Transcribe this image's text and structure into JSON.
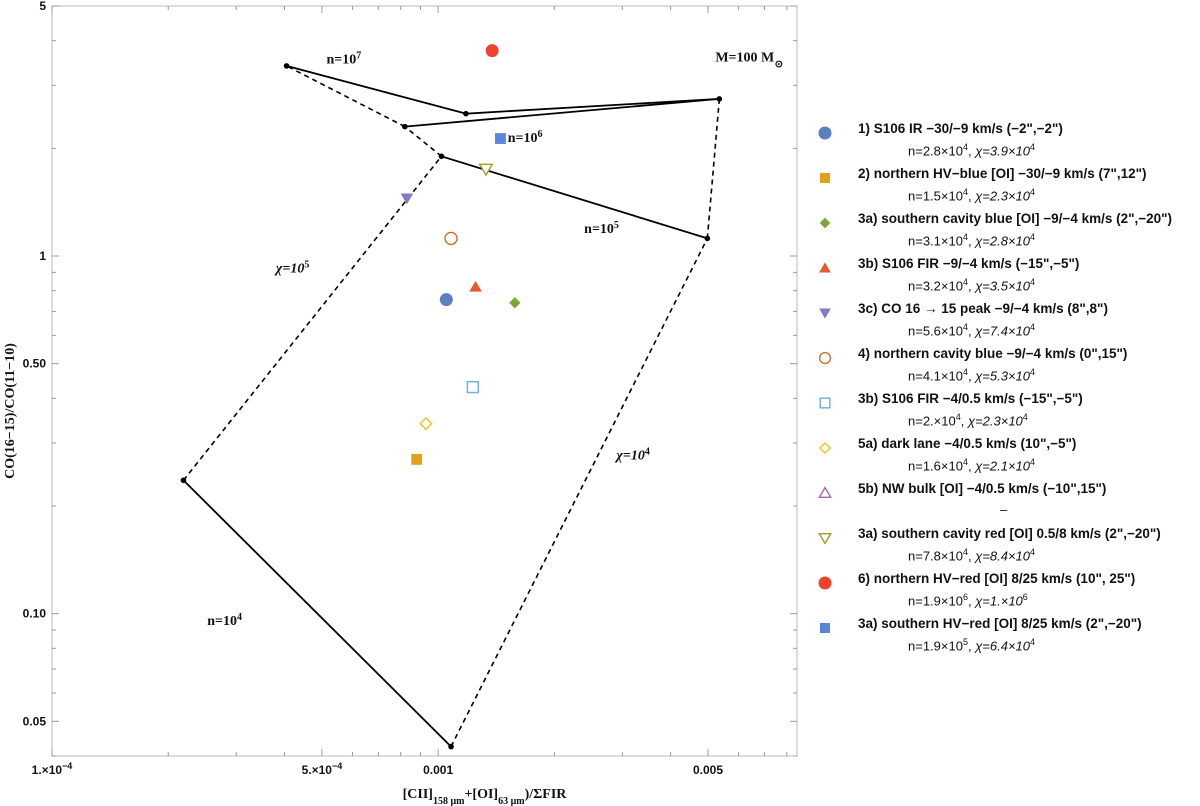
{
  "chart_data": {
    "type": "scatter",
    "xscale": "log",
    "yscale": "log",
    "xlim": [
      0.0001,
      0.0085
    ],
    "ylim": [
      0.04,
      5
    ],
    "xlabel": "[CII]158 μm+[OI]63 μm)/ΣFIR",
    "xlabel_parts": {
      "open": "[CII]",
      "sub1": "158 μm",
      "plus": "+[OI]",
      "sub2": "63 μm",
      "close": ")/ΣFIR"
    },
    "ylabel": "CO(16−15)/CO(11−10)",
    "x_ticks": [
      {
        "value": 0.0001,
        "label": "1.×10",
        "exp": "−4"
      },
      {
        "value": 0.0005,
        "label": "5.×10",
        "exp": "−4"
      },
      {
        "value": 0.001,
        "label": "0.001",
        "exp": ""
      },
      {
        "value": 0.005,
        "label": "0.005",
        "exp": ""
      }
    ],
    "y_ticks": [
      {
        "value": 0.05,
        "label": "0.05"
      },
      {
        "value": 0.1,
        "label": "0.10"
      },
      {
        "value": 0.5,
        "label": "0.50"
      },
      {
        "value": 1,
        "label": "1"
      },
      {
        "value": 5,
        "label": "5"
      }
    ],
    "grid_vertices": {
      "n1e4_chi1e5": [
        0.000219,
        0.236
      ],
      "n1e4_chi1e4": [
        0.00108,
        0.0425
      ],
      "n1e5_chi1e5": [
        0.00102,
        1.9
      ],
      "n1e5_chi1e4": [
        0.00498,
        1.12
      ],
      "n1e6_chi1e5": [
        0.00082,
        2.3
      ],
      "n1e6_chi1e4": [
        0.00535,
        2.75
      ],
      "n1e7_chi1e5": [
        0.000405,
        3.4
      ],
      "n1e7_mid": [
        0.00118,
        2.5
      ]
    },
    "solid_segments": [
      [
        "n1e4_chi1e5",
        "n1e4_chi1e4"
      ],
      [
        "n1e5_chi1e5",
        "n1e5_chi1e4"
      ],
      [
        "n1e6_chi1e5",
        "n1e6_chi1e4"
      ],
      [
        "n1e7_chi1e5",
        "n1e7_mid"
      ],
      [
        "n1e7_mid",
        "n1e6_chi1e4"
      ]
    ],
    "dashed_segments": [
      [
        "n1e4_chi1e5",
        "n1e5_chi1e5"
      ],
      [
        "n1e5_chi1e5",
        "n1e6_chi1e5"
      ],
      [
        "n1e6_chi1e5",
        "n1e7_chi1e5"
      ],
      [
        "n1e4_chi1e4",
        "n1e5_chi1e4"
      ],
      [
        "n1e5_chi1e4",
        "n1e6_chi1e4"
      ]
    ],
    "annotations": [
      {
        "text": "M=100 M",
        "sub": "⊙",
        "x": 0.0064,
        "y": 3.5,
        "italic": false
      },
      {
        "text": "n=10",
        "sup": "7",
        "x": 0.00057,
        "y": 3.45,
        "italic": false
      },
      {
        "text": "n=10",
        "sup": "6",
        "x": 0.00168,
        "y": 2.08,
        "italic": false
      },
      {
        "text": "n=10",
        "sup": "5",
        "x": 0.00265,
        "y": 1.16,
        "italic": false
      },
      {
        "text": "n=10",
        "sup": "4",
        "x": 0.00028,
        "y": 0.093,
        "italic": false
      },
      {
        "text": "χ=10",
        "sup": "5",
        "x": 0.00042,
        "y": 0.9,
        "italic": true
      },
      {
        "text": "χ=10",
        "sup": "4",
        "x": 0.0032,
        "y": 0.27,
        "italic": true
      }
    ],
    "series": [
      {
        "name": "1)  S106 IR −30/−9 km/s (−2\",−2\")",
        "n": "n=2.8×10",
        "n_exp": "4",
        "chi": "χ=3.9×10",
        "chi_exp": "4",
        "marker": "circle",
        "filled": true,
        "color": "#5b7fbf",
        "x": 0.00105,
        "y": 0.755
      },
      {
        "name": "2)  northern HV−blue [OI] −30/−9 km/s (7\",12\")",
        "n": "n=1.5×10",
        "n_exp": "4",
        "chi": "χ=2.3×10",
        "chi_exp": "4",
        "marker": "square",
        "filled": true,
        "color": "#e0a21c",
        "x": 0.00088,
        "y": 0.27
      },
      {
        "name": "3a) southern cavity blue  [OI] −9/−4 km/s (2\",−20\")",
        "n": "n=3.1×10",
        "n_exp": "4",
        "chi": "χ=2.8×10",
        "chi_exp": "4",
        "marker": "diamond",
        "filled": true,
        "color": "#80a63a",
        "x": 0.00158,
        "y": 0.74
      },
      {
        "name": "3b) S106 FIR −9/−4 km/s (−15\",−5\")",
        "n": "n=3.2×10",
        "n_exp": "4",
        "chi": "χ=3.5×10",
        "chi_exp": "4",
        "marker": "triangle",
        "filled": true,
        "color": "#e55a30",
        "x": 0.00125,
        "y": 0.82
      },
      {
        "name": "3c) CO 16 → 15 peak −9/−4 km/s (8\",8\")",
        "n": "n=5.6×10",
        "n_exp": "4",
        "chi": "χ=7.4×10",
        "chi_exp": "4",
        "marker": "triangle-down",
        "filled": true,
        "color": "#8878c0",
        "x": 0.00083,
        "y": 1.45
      },
      {
        "name": "4)  northern cavity blue −9/−4 km/s (0\",15\")",
        "n": "n=4.1×10",
        "n_exp": "4",
        "chi": "χ=5.3×10",
        "chi_exp": "4",
        "marker": "circle",
        "filled": false,
        "color": "#c8702c",
        "x": 0.00108,
        "y": 1.12
      },
      {
        "name": "3b) S106 FIR −4/0.5 km/s (−15\",−5\")",
        "n": "n=2.×10",
        "n_exp": "4",
        "chi": "χ=2.3×10",
        "chi_exp": "4",
        "marker": "square",
        "filled": false,
        "color": "#6aaee0",
        "x": 0.00123,
        "y": 0.43
      },
      {
        "name": "5a) dark lane −4/0.5 km/s (10\",−5\")",
        "n": "n=1.6×10",
        "n_exp": "4",
        "chi": "χ=2.1×10",
        "chi_exp": "4",
        "marker": "diamond",
        "filled": false,
        "color": "#f0c020",
        "x": 0.00093,
        "y": 0.34
      },
      {
        "name": "5b) NW bulk [OI] −4/0.5 km/s (−10\",15\")",
        "n": "–",
        "n_exp": "",
        "chi": "",
        "chi_exp": "",
        "marker": "triangle",
        "filled": false,
        "color": "#b060b0"
      },
      {
        "name": "3a) southern cavity red [OI] 0.5/8 km/s (2\",−20\")",
        "n": "n=7.8×10",
        "n_exp": "4",
        "chi": "χ=8.4×10",
        "chi_exp": "4",
        "marker": "triangle-down",
        "filled": false,
        "color": "#9aa020",
        "x": 0.00133,
        "y": 1.75
      },
      {
        "name": "6)  northern HV−red [OI] 8/25 km/s (10\", 25\")",
        "n": "n=1.9×10",
        "n_exp": "6",
        "chi": "χ=1.×10",
        "chi_exp": "6",
        "marker": "circle",
        "filled": true,
        "color": "#e8452c",
        "x": 0.00138,
        "y": 3.75
      },
      {
        "name": "3a) southern HV−red [OI] 8/25 km/s (2\",−20\")",
        "n": "n=1.9×10",
        "n_exp": "5",
        "chi": "χ=6.4×10",
        "chi_exp": "4",
        "marker": "square",
        "filled": true,
        "color": "#5b85d8",
        "x": 0.00145,
        "y": 2.13
      }
    ]
  }
}
